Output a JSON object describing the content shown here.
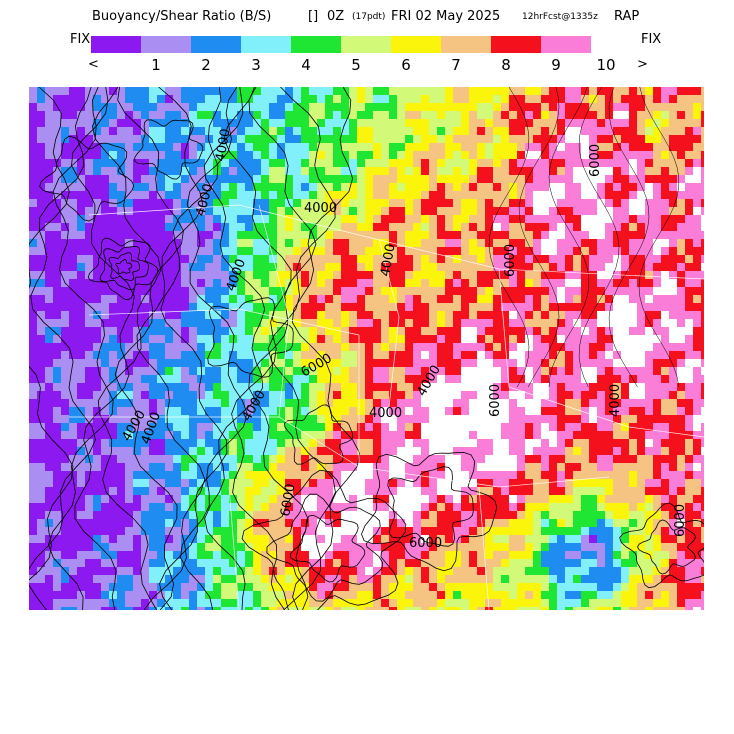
{
  "title": {
    "main": "Buoyancy/Shear Ratio (B/S)",
    "box": "[]",
    "time": "0Z",
    "pdt": "(17pdt)",
    "date": "FRI 02 May 2025",
    "forecast": "12hrFcst@1335z",
    "model": "RAP"
  },
  "legend": {
    "fix_left": "FIX",
    "fix_right": "FIX",
    "arrow_left": "<",
    "arrow_right": ">",
    "colors": [
      "#8c19f0",
      "#aa8ef2",
      "#1e8cf0",
      "#82f0fa",
      "#1ee632",
      "#d2fa78",
      "#faf50a",
      "#f5c382",
      "#f5101e",
      "#fa7dd7"
    ],
    "ticks": [
      "1",
      "2",
      "3",
      "4",
      "5",
      "6",
      "7",
      "8",
      "9",
      "10"
    ]
  },
  "map": {
    "contour_labels": [
      "4000",
      "4000",
      "4000",
      "4000",
      "4000",
      "4000",
      "6000",
      "6000",
      "4000",
      "4000",
      "4000",
      "4000",
      "6000",
      "6000",
      "6000",
      "6000",
      "6000",
      "4000"
    ]
  }
}
